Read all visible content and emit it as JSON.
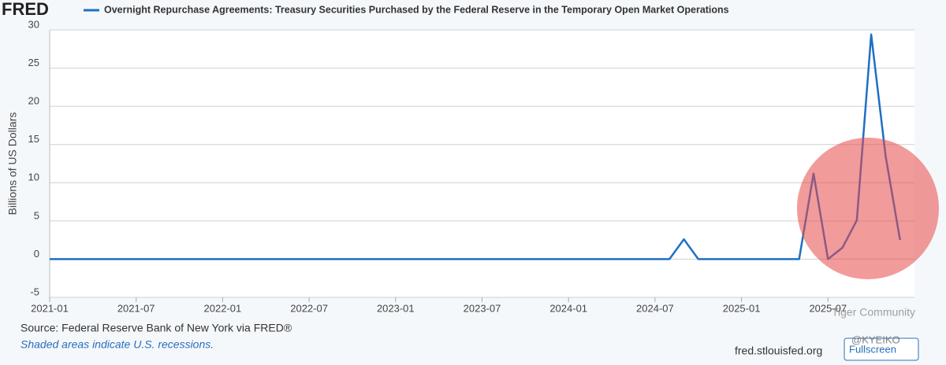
{
  "logo": "FRED",
  "source": "Source: Federal Reserve Bank of New York via FRED®",
  "note": "Shaded areas indicate U.S. recessions.",
  "site": "fred.stlouisfed.org",
  "button": "Fullscreen",
  "watermark": [
    "Tiger Community",
    "@KYEIKO"
  ],
  "chart_data": {
    "type": "line",
    "title": "Overnight Repurchase Agreements: Treasury Securities Purchased by the Federal Reserve in the Temporary Open Market Operations",
    "y_label": "Billions of US Dollars",
    "color": "#1f6fc5",
    "x": [
      "2021-01",
      "2021-02",
      "2021-03",
      "2021-04",
      "2021-05",
      "2021-06",
      "2021-07",
      "2021-08",
      "2021-09",
      "2021-10",
      "2021-11",
      "2021-12",
      "2022-01",
      "2022-02",
      "2022-03",
      "2022-04",
      "2022-05",
      "2022-06",
      "2022-07",
      "2022-08",
      "2022-09",
      "2022-10",
      "2022-11",
      "2022-12",
      "2023-01",
      "2023-02",
      "2023-03",
      "2023-04",
      "2023-05",
      "2023-06",
      "2023-07",
      "2023-08",
      "2023-09",
      "2023-10",
      "2023-11",
      "2023-12",
      "2024-01",
      "2024-02",
      "2024-03",
      "2024-04",
      "2024-05",
      "2024-06",
      "2024-07",
      "2024-08",
      "2024-09",
      "2024-10",
      "2024-11",
      "2024-12",
      "2025-01",
      "2025-02",
      "2025-03",
      "2025-04",
      "2025-05",
      "2025-06",
      "2025-07",
      "2025-08",
      "2025-09",
      "2025-10",
      "2025-11",
      "2025-12"
    ],
    "values": [
      0,
      0,
      0,
      0,
      0,
      0,
      0,
      0,
      0,
      0,
      0,
      0,
      0,
      0,
      0,
      0,
      0,
      0,
      0,
      0,
      0,
      0,
      0,
      0,
      0,
      0,
      0,
      0,
      0,
      0,
      0,
      0,
      0,
      0,
      0,
      0,
      0,
      0,
      0,
      0,
      0,
      0,
      0,
      0,
      2.6,
      0,
      0,
      0,
      0,
      0,
      0,
      0,
      0,
      11.2,
      0,
      1.5,
      5.1,
      29.4,
      13.5,
      2.5
    ],
    "xlim": [
      "2021-01",
      "2026-01"
    ],
    "xticks": [
      "2021-01",
      "2021-07",
      "2022-01",
      "2022-07",
      "2023-01",
      "2023-07",
      "2024-01",
      "2024-07",
      "2025-01",
      "2025-07"
    ],
    "ylim": [
      -5,
      30
    ],
    "yticks": [
      -5,
      0,
      5,
      10,
      15,
      20,
      25,
      30
    ],
    "grid": true
  }
}
